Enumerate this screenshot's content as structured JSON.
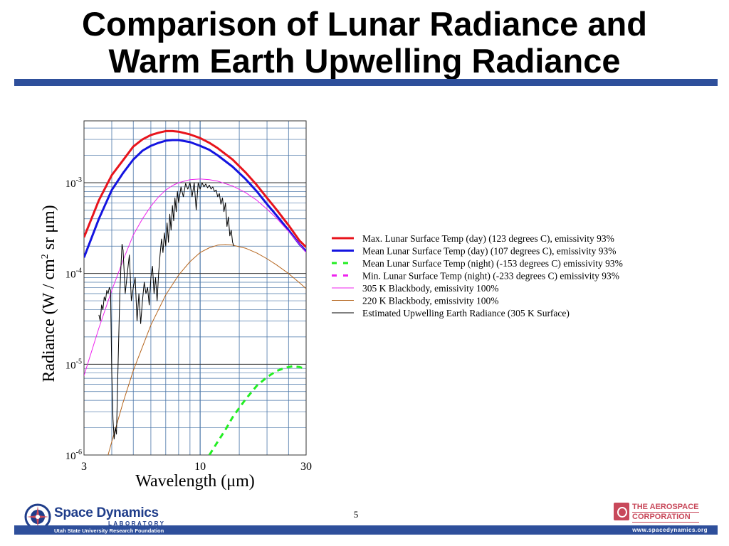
{
  "slide": {
    "title_line1": "Comparison of Lunar Radiance and",
    "title_line2": "Warm Earth Upwelling Radiance",
    "slide_number": "5",
    "colors": {
      "rule": "#2e4f9b",
      "sdl_blue": "#1f3d8a",
      "aerospace_red": "#c8485a"
    }
  },
  "footer": {
    "sdl_name": "Space Dynamics",
    "sdl_laboratory": "LABORATORY",
    "sdl_foundation": "Utah State University Research Foundation",
    "aerospace_line1": "THE AEROSPACE",
    "aerospace_line2": "CORPORATION",
    "website": "www.spacedynamics.org"
  },
  "chart_data": {
    "type": "line",
    "title": "",
    "xlabel": "Wavelength (μm)",
    "ylabel": "Radiance (W / cm",
    "ylabel_sup": "2",
    "ylabel_tail": " sr μm)",
    "xscale": "log",
    "yscale": "log",
    "xlim": [
      3,
      30
    ],
    "ylim": [
      1e-06,
      0.0048
    ],
    "x_ticks": [
      {
        "value": 3,
        "label": "3"
      },
      {
        "value": 10,
        "label": "10"
      },
      {
        "value": 30,
        "label": "30"
      }
    ],
    "y_ticks": [
      {
        "value": 0.001,
        "base": "10",
        "exp": "-3"
      },
      {
        "value": 0.0001,
        "base": "10",
        "exp": "-4"
      },
      {
        "value": 1e-05,
        "base": "10",
        "exp": "-5"
      },
      {
        "value": 1e-06,
        "base": "10",
        "exp": "-6"
      }
    ],
    "grid": true,
    "legend_position": "right",
    "series": [
      {
        "name": "Max. Lunar Surface Temp (day) (123 degrees C), emissivity 93%",
        "color": "#e8141c",
        "style": "solid",
        "width": 3,
        "x": [
          3,
          3.5,
          4,
          4.5,
          5,
          5.5,
          6,
          6.5,
          7,
          7.5,
          8,
          9,
          10,
          11,
          12,
          14,
          16,
          18,
          20,
          22,
          25,
          28,
          30
        ],
        "y": [
          0.00025,
          0.00064,
          0.00121,
          0.00177,
          0.0025,
          0.003,
          0.00335,
          0.00355,
          0.0037,
          0.0037,
          0.00365,
          0.0034,
          0.0031,
          0.00275,
          0.0024,
          0.0018,
          0.0013,
          0.00094,
          0.00068,
          0.00051,
          0.00034,
          0.00023,
          0.000195
        ]
      },
      {
        "name": "Mean Lunar Surface Temp (day) (107 degrees C), emissivity 93%",
        "color": "#1414e0",
        "style": "solid",
        "width": 3,
        "x": [
          3,
          3.5,
          4,
          4.5,
          5,
          5.5,
          6,
          6.5,
          7,
          7.5,
          8,
          9,
          10,
          11,
          12,
          14,
          16,
          18,
          20,
          22,
          25,
          28,
          30
        ],
        "y": [
          0.00015,
          0.0004,
          0.00083,
          0.00128,
          0.0018,
          0.00225,
          0.00255,
          0.00275,
          0.0029,
          0.00295,
          0.00295,
          0.0028,
          0.00255,
          0.0023,
          0.002,
          0.0015,
          0.0011,
          0.0008,
          0.00058,
          0.00044,
          0.0003,
          0.00021,
          0.000175
        ]
      },
      {
        "name": "Mean Lunar Surface Temp (night) (-153 degrees C) emissivity 93%",
        "color": "#22ee22",
        "style": "dashed",
        "width": 3,
        "x": [
          11,
          12,
          13,
          14,
          15,
          16,
          18,
          20,
          22,
          24,
          26,
          28,
          30
        ],
        "y": [
          1e-06,
          1.4e-06,
          1.9e-06,
          2.6e-06,
          3.3e-06,
          4.1e-06,
          5.8e-06,
          7.2e-06,
          8.4e-06,
          9.1e-06,
          9.5e-06,
          9.3e-06,
          8.8e-06
        ]
      },
      {
        "name": "Min. Lunar Surface Temp (night) (-233 degrees C) emissivity 93%",
        "color": "#ee22ee",
        "style": "dashed",
        "width": 3,
        "x": [],
        "y": []
      },
      {
        "name": "305 K Blackbody, emissivity 100%",
        "color": "#ee22ee",
        "style": "solid",
        "width": 1,
        "x": [
          3,
          3.5,
          4,
          4.5,
          5,
          5.5,
          6,
          6.5,
          7,
          7.5,
          8,
          9,
          10,
          11,
          12,
          14,
          16,
          18,
          20,
          22,
          25,
          28,
          30
        ],
        "y": [
          7.5e-06,
          2.5e-05,
          6.5e-05,
          0.00014,
          0.000265,
          0.0004,
          0.00055,
          0.0007,
          0.00083,
          0.00093,
          0.001,
          0.00108,
          0.0011,
          0.00108,
          0.00104,
          0.00092,
          0.00078,
          0.00064,
          0.00051,
          0.00041,
          0.00029,
          0.00021,
          0.00017
        ]
      },
      {
        "name": "220 K Blackbody, emissivity 100%",
        "color": "#b5651d",
        "style": "solid",
        "width": 1,
        "x": [
          3.85,
          4,
          4.5,
          5,
          6,
          7,
          8,
          9,
          10,
          11,
          12,
          13,
          14,
          16,
          18,
          20,
          22,
          25,
          28,
          30
        ],
        "y": [
          1e-06,
          1.4e-06,
          3.8e-06,
          8.5e-06,
          2.7e-05,
          5.8e-05,
          9.6e-05,
          0.000135,
          0.00017,
          0.000192,
          0.000205,
          0.000208,
          0.000205,
          0.00019,
          0.000168,
          0.000145,
          0.000125,
          0.0001,
          7.9e-05,
          6.8e-05
        ]
      },
      {
        "name": "Estimated Upwelling Earth Radiance (305 K Surface)",
        "color": "#000000",
        "style": "solid",
        "width": 1,
        "x": [
          3.5,
          3.55,
          3.6,
          3.65,
          3.7,
          3.75,
          3.8,
          3.85,
          3.9,
          3.95,
          4.0,
          4.05,
          4.1,
          4.15,
          4.2,
          4.25,
          4.3,
          4.35,
          4.4,
          4.45,
          4.5,
          4.6,
          4.7,
          4.8,
          4.9,
          5.0,
          5.1,
          5.2,
          5.3,
          5.4,
          5.5,
          5.6,
          5.7,
          5.8,
          5.9,
          6.0,
          6.1,
          6.2,
          6.3,
          6.4,
          6.5,
          6.6,
          6.7,
          6.8,
          6.9,
          7.0,
          7.1,
          7.2,
          7.3,
          7.4,
          7.5,
          7.6,
          7.7,
          7.8,
          7.9,
          8.0,
          8.2,
          8.4,
          8.6,
          8.8,
          9.0,
          9.2,
          9.4,
          9.6,
          9.8,
          10.0,
          10.2,
          10.4,
          10.6,
          10.8,
          11.0,
          11.2,
          11.4,
          11.6,
          11.8,
          12.0,
          12.2,
          12.4,
          12.6,
          12.8,
          13.0,
          13.2,
          13.4,
          13.6,
          13.8,
          14.0,
          14.2
        ],
        "y": [
          3.5e-05,
          3e-05,
          4.5e-05,
          4e-05,
          5.5e-05,
          5e-05,
          6.5e-05,
          6e-05,
          7e-05,
          6.5e-05,
          8e-06,
          2.5e-06,
          1.5e-06,
          2e-06,
          1.7e-06,
          6e-06,
          2e-05,
          6e-05,
          0.00012,
          0.00021,
          0.00018,
          6e-05,
          0.0001,
          0.00016,
          5e-05,
          7e-05,
          9e-05,
          3e-05,
          6e-05,
          2.8e-05,
          5e-05,
          8e-05,
          6e-05,
          7e-05,
          4.5e-05,
          9e-05,
          0.00012,
          6e-05,
          9e-05,
          5e-05,
          0.0001,
          0.00016,
          0.00024,
          0.00017,
          0.00028,
          0.0002,
          0.00036,
          0.00022,
          0.00045,
          0.0003,
          0.00056,
          0.00038,
          0.00068,
          0.00048,
          0.0008,
          0.0006,
          0.0009,
          0.0007,
          0.00098,
          0.00085,
          0.001,
          0.0007,
          0.001,
          0.0005,
          0.001,
          0.00085,
          0.001,
          0.0009,
          0.00097,
          0.00088,
          0.00094,
          0.00085,
          0.0009,
          0.0008,
          0.00083,
          0.0007,
          0.00076,
          0.00058,
          0.00068,
          0.00048,
          0.0006,
          0.00033,
          0.00042,
          0.00026,
          0.0003,
          0.00022,
          0.0002
        ]
      }
    ]
  }
}
